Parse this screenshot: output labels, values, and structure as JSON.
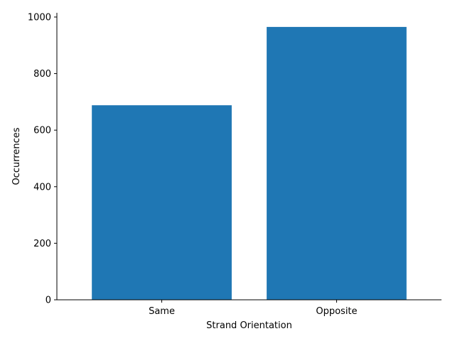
{
  "chart_data": {
    "type": "bar",
    "categories": [
      "Same",
      "Opposite"
    ],
    "values": [
      688,
      965
    ],
    "title": "",
    "xlabel": "Strand Orientation",
    "ylabel": "Occurrences",
    "ylim": [
      0,
      1015
    ],
    "yticks": [
      0,
      200,
      400,
      600,
      800,
      1000
    ],
    "grid": false,
    "legend": "none",
    "bar_color": "#1f77b4",
    "spines": [
      "left",
      "bottom"
    ]
  }
}
